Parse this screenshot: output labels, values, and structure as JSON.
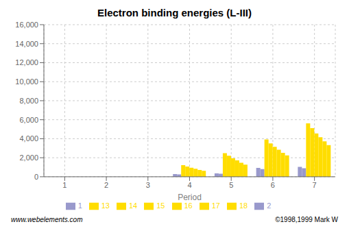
{
  "chart_data": {
    "type": "bar",
    "title": "Electron binding energies (L-III)",
    "xlabel": "Period",
    "categories": [
      "1",
      "2",
      "3",
      "4",
      "5",
      "6",
      "7"
    ],
    "series": [
      {
        "name": "1",
        "color": "#9999cc",
        "values": [
          null,
          null,
          null,
          286,
          358,
          931,
          1042
        ]
      },
      {
        "name": "2",
        "color": "#9999cc",
        "values": [
          null,
          null,
          null,
          245,
          310,
          800,
          900
        ]
      },
      {
        "name": "13",
        "color": "#ffdd00",
        "values": [
          null,
          null,
          null,
          1217,
          2472,
          3928,
          5625
        ]
      },
      {
        "name": "14",
        "color": "#ffdd00",
        "values": [
          null,
          null,
          null,
          1071,
          2202,
          3512,
          5109
        ]
      },
      {
        "name": "15",
        "color": "#ffdd00",
        "values": [
          null,
          null,
          null,
          952,
          1947,
          3146,
          4557
        ]
      },
      {
        "name": "16",
        "color": "#ffdd00",
        "values": [
          null,
          null,
          null,
          832,
          1721,
          2838,
          4149
        ]
      },
      {
        "name": "17",
        "color": "#ffdd00",
        "values": [
          null,
          null,
          null,
          721,
          1474,
          2520,
          3727
        ]
      },
      {
        "name": "18",
        "color": "#ffdd00",
        "values": [
          null,
          null,
          null,
          619,
          1267,
          2238,
          3330
        ]
      }
    ],
    "ylim": [
      0,
      16000
    ],
    "yticks": [
      0,
      {
        "value": 2000,
        "label": "2,000"
      },
      {
        "value": 4000,
        "label": "4,000"
      },
      {
        "value": 6000,
        "label": "6,000"
      },
      {
        "value": 8000,
        "label": "8,000"
      },
      {
        "value": 10000,
        "label": "10,000"
      },
      {
        "value": 12000,
        "label": "12,000"
      },
      {
        "value": 14000,
        "label": "14,000"
      },
      {
        "value": 16000,
        "label": "16,000"
      }
    ],
    "grid": true,
    "legend": "bottom",
    "annotations": [
      "www.webelements.com",
      "©1998,1999 Mark W"
    ]
  }
}
